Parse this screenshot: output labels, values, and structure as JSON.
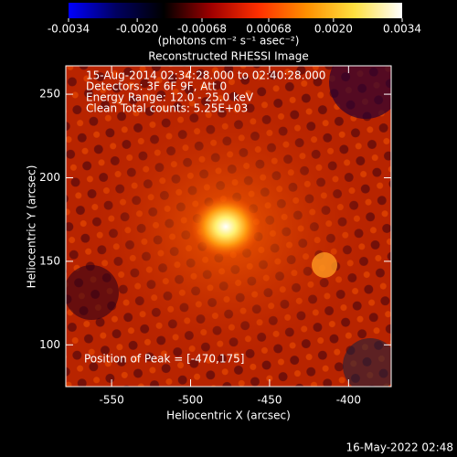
{
  "chart_data": {
    "type": "image",
    "title": "Reconstructed RHESSI Image",
    "colorbar": {
      "lim": [
        -0.0034,
        0.0034
      ],
      "ticks": [
        -0.0034,
        -0.002,
        -0.00068,
        0.00068,
        0.002,
        0.0034
      ],
      "tick_labels": [
        "-0.0034",
        "-0.0020",
        "-0.00068",
        "0.00068",
        "0.0020",
        "0.0034"
      ],
      "label": "(photons cm⁻² s⁻¹ asec⁻²)",
      "colors": [
        "#0000ff",
        "#000060",
        "#000000",
        "#a00000",
        "#ff3000",
        "#ff9000",
        "#ffe040",
        "#ffffff"
      ]
    },
    "annotations": [
      "15-Aug-2014 02:34:28.000 to 02:40:28.000",
      "Detectors: 3F 6F 9F, Att 0",
      "Energy Range: 12.0 - 25.0 keV",
      "Clean     Total counts: 5.25E+03"
    ],
    "peak_label": "Position of Peak = [-470,175]",
    "xlabel": "Heliocentric X (arcsec)",
    "ylabel": "Heliocentric Y (arcsec)",
    "xlim": [
      -579,
      -373
    ],
    "xticks": [
      -550,
      -500,
      -450,
      -400
    ],
    "ylim": [
      75,
      267
    ],
    "yticks": [
      100,
      150,
      200,
      250
    ],
    "timestamp": "16-May-2022 02:48"
  }
}
